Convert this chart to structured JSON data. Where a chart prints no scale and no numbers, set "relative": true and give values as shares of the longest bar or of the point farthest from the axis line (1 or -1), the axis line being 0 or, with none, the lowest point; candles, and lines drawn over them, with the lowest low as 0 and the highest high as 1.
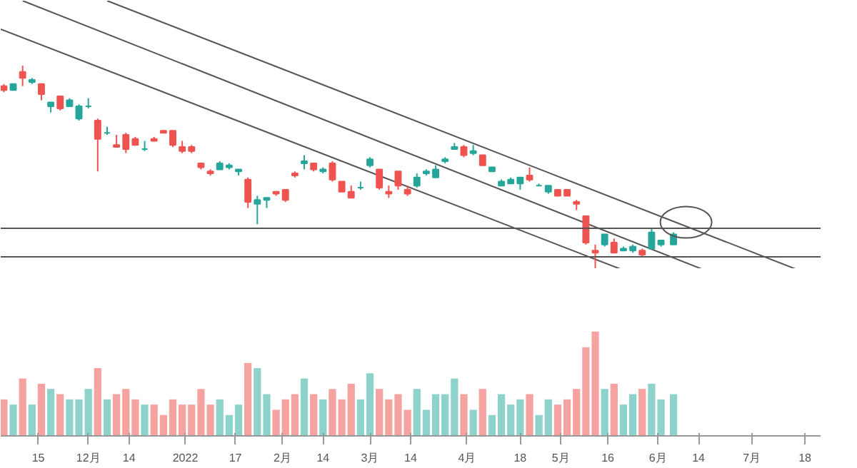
{
  "chart_data": [
    {
      "type": "candlestick",
      "relative": true,
      "tick_labels": false,
      "xlim": [
        "2021-11-03",
        "2022-07-23"
      ],
      "x": [
        "2021-11-04",
        "2021-11-07",
        "2021-11-10",
        "2021-11-13",
        "2021-11-16",
        "2021-11-19",
        "2021-11-22",
        "2021-11-25",
        "2021-11-28",
        "2021-12-01",
        "2021-12-04",
        "2021-12-07",
        "2021-12-10",
        "2021-12-13",
        "2021-12-16",
        "2021-12-19",
        "2021-12-22",
        "2021-12-25",
        "2021-12-28",
        "2021-12-31",
        "2022-01-03",
        "2022-01-06",
        "2022-01-09",
        "2022-01-12",
        "2022-01-15",
        "2022-01-18",
        "2022-01-21",
        "2022-01-24",
        "2022-01-27",
        "2022-01-30",
        "2022-02-02",
        "2022-02-05",
        "2022-02-08",
        "2022-02-11",
        "2022-02-14",
        "2022-02-17",
        "2022-02-20",
        "2022-02-23",
        "2022-02-26",
        "2022-03-01",
        "2022-03-04",
        "2022-03-07",
        "2022-03-10",
        "2022-03-13",
        "2022-03-16",
        "2022-03-19",
        "2022-03-22",
        "2022-03-25",
        "2022-03-28",
        "2022-03-31",
        "2022-04-03",
        "2022-04-06",
        "2022-04-09",
        "2022-04-12",
        "2022-04-15",
        "2022-04-18",
        "2022-04-21",
        "2022-04-24",
        "2022-04-27",
        "2022-04-30",
        "2022-05-03",
        "2022-05-06",
        "2022-05-09",
        "2022-05-12",
        "2022-05-15",
        "2022-05-18",
        "2022-05-21",
        "2022-05-24",
        "2022-05-27",
        "2022-05-30",
        "2022-06-02",
        "2022-06-06"
      ],
      "ohlc": [
        [
          0.9,
          0.91,
          0.87,
          0.88
        ],
        [
          0.88,
          0.91,
          0.88,
          0.91
        ],
        [
          0.97,
          1.0,
          0.9,
          0.94
        ],
        [
          0.92,
          0.94,
          0.91,
          0.93
        ],
        [
          0.91,
          0.91,
          0.83,
          0.86
        ],
        [
          0.8,
          0.82,
          0.77,
          0.82
        ],
        [
          0.85,
          0.85,
          0.78,
          0.79
        ],
        [
          0.8,
          0.84,
          0.8,
          0.83
        ],
        [
          0.74,
          0.81,
          0.73,
          0.8
        ],
        [
          0.8,
          0.84,
          0.79,
          0.8
        ],
        [
          0.73,
          0.74,
          0.48,
          0.64
        ],
        [
          0.67,
          0.7,
          0.66,
          0.67
        ],
        [
          0.61,
          0.66,
          0.6,
          0.6
        ],
        [
          0.66,
          0.67,
          0.57,
          0.59
        ],
        [
          0.64,
          0.65,
          0.61,
          0.61
        ],
        [
          0.59,
          0.63,
          0.58,
          0.59
        ],
        [
          0.64,
          0.65,
          0.63,
          0.63
        ],
        [
          0.68,
          0.68,
          0.67,
          0.67
        ],
        [
          0.68,
          0.68,
          0.6,
          0.61
        ],
        [
          0.6,
          0.63,
          0.57,
          0.58
        ],
        [
          0.6,
          0.61,
          0.57,
          0.58
        ],
        [
          0.52,
          0.52,
          0.49,
          0.5
        ],
        [
          0.48,
          0.49,
          0.46,
          0.47
        ],
        [
          0.49,
          0.53,
          0.49,
          0.52
        ],
        [
          0.5,
          0.52,
          0.49,
          0.51
        ],
        [
          0.48,
          0.49,
          0.46,
          0.49
        ],
        [
          0.44,
          0.45,
          0.3,
          0.33
        ],
        [
          0.32,
          0.36,
          0.22,
          0.34
        ],
        [
          0.34,
          0.35,
          0.3,
          0.35
        ],
        [
          0.38,
          0.38,
          0.36,
          0.37
        ],
        [
          0.39,
          0.39,
          0.33,
          0.34
        ],
        [
          0.47,
          0.48,
          0.45,
          0.46
        ],
        [
          0.52,
          0.56,
          0.49,
          0.53
        ],
        [
          0.52,
          0.52,
          0.48,
          0.49
        ],
        [
          0.48,
          0.5,
          0.47,
          0.49
        ],
        [
          0.52,
          0.53,
          0.43,
          0.44
        ],
        [
          0.43,
          0.43,
          0.38,
          0.38
        ],
        [
          0.38,
          0.41,
          0.35,
          0.35
        ],
        [
          0.4,
          0.43,
          0.39,
          0.4
        ],
        [
          0.51,
          0.55,
          0.5,
          0.54
        ],
        [
          0.49,
          0.49,
          0.39,
          0.4
        ],
        [
          0.38,
          0.41,
          0.35,
          0.37
        ],
        [
          0.48,
          0.48,
          0.39,
          0.41
        ],
        [
          0.39,
          0.41,
          0.36,
          0.37
        ],
        [
          0.41,
          0.47,
          0.4,
          0.45
        ],
        [
          0.47,
          0.49,
          0.46,
          0.48
        ],
        [
          0.45,
          0.51,
          0.45,
          0.49
        ],
        [
          0.53,
          0.55,
          0.52,
          0.54
        ],
        [
          0.59,
          0.62,
          0.59,
          0.6
        ],
        [
          0.6,
          0.61,
          0.55,
          0.56
        ],
        [
          0.57,
          0.61,
          0.56,
          0.58
        ],
        [
          0.56,
          0.56,
          0.51,
          0.51
        ],
        [
          0.48,
          0.5,
          0.48,
          0.5
        ],
        [
          0.41,
          0.44,
          0.41,
          0.43
        ],
        [
          0.42,
          0.45,
          0.42,
          0.44
        ],
        [
          0.42,
          0.45,
          0.39,
          0.45
        ],
        [
          0.46,
          0.5,
          0.43,
          0.44
        ],
        [
          0.41,
          0.42,
          0.41,
          0.41
        ],
        [
          0.38,
          0.41,
          0.37,
          0.41
        ],
        [
          0.39,
          0.39,
          0.36,
          0.36
        ],
        [
          0.39,
          0.39,
          0.36,
          0.36
        ],
        [
          0.33,
          0.34,
          0.29,
          0.32
        ],
        [
          0.26,
          0.26,
          0.12,
          0.13
        ],
        [
          0.09,
          0.12,
          0.0,
          0.08
        ],
        [
          0.12,
          0.17,
          0.11,
          0.17
        ],
        [
          0.13,
          0.15,
          0.08,
          0.08
        ],
        [
          0.09,
          0.11,
          0.09,
          0.1
        ],
        [
          0.09,
          0.12,
          0.08,
          0.11
        ],
        [
          0.09,
          0.1,
          0.06,
          0.07
        ],
        [
          0.1,
          0.2,
          0.1,
          0.18
        ],
        [
          0.12,
          0.14,
          0.11,
          0.14
        ],
        [
          0.12,
          0.18,
          0.12,
          0.17
        ]
      ],
      "colors": [
        "#ef5350",
        "#26a69a",
        "#ef5350",
        "#26a69a",
        "#ef5350",
        "#26a69a",
        "#ef5350",
        "#26a69a",
        "#26a69a",
        "#26a69a",
        "#ef5350",
        "#26a69a",
        "#ef5350",
        "#ef5350",
        "#ef5350",
        "#26a69a",
        "#ef5350",
        "#ef5350",
        "#ef5350",
        "#ef5350",
        "#ef5350",
        "#ef5350",
        "#ef5350",
        "#26a69a",
        "#26a69a",
        "#26a69a",
        "#ef5350",
        "#26a69a",
        "#26a69a",
        "#ef5350",
        "#ef5350",
        "#ef5350",
        "#26a69a",
        "#ef5350",
        "#26a69a",
        "#ef5350",
        "#ef5350",
        "#ef5350",
        "#26a69a",
        "#26a69a",
        "#ef5350",
        "#ef5350",
        "#ef5350",
        "#ef5350",
        "#26a69a",
        "#26a69a",
        "#26a69a",
        "#26a69a",
        "#26a69a",
        "#ef5350",
        "#26a69a",
        "#ef5350",
        "#26a69a",
        "#26a69a",
        "#26a69a",
        "#26a69a",
        "#ef5350",
        "#26a69a",
        "#26a69a",
        "#ef5350",
        "#ef5350",
        "#ef5350",
        "#ef5350",
        "#ef5350",
        "#26a69a",
        "#ef5350",
        "#26a69a",
        "#26a69a",
        "#ef5350",
        "#26a69a",
        "#26a69a",
        "#26a69a"
      ],
      "series": [
        {
          "type": "line",
          "color": "#555555",
          "x": [
            "2021-11-03",
            "2022-05-20"
          ],
          "values": [
            1.18,
            0.0
          ]
        },
        {
          "type": "line",
          "color": "#555555",
          "x": [
            "2021-11-10",
            "2022-06-15"
          ],
          "values": [
            1.32,
            0.0
          ]
        },
        {
          "type": "line",
          "color": "#555555",
          "x": [
            "2021-12-07",
            "2022-07-15"
          ],
          "values": [
            1.32,
            0.0
          ]
        }
      ],
      "ref_lines": [
        {
          "axis": "y",
          "value": 0.2,
          "color": "#555555"
        },
        {
          "axis": "y",
          "value": 0.06,
          "color": "#555555"
        }
      ]
    },
    {
      "type": "bar",
      "relative": true,
      "tick_labels": "x",
      "xlim": [
        "2021-11-03",
        "2022-07-23"
      ],
      "xticks": [
        {
          "value": "2021-11-15",
          "label": "15"
        },
        {
          "value": "2021-12-01",
          "label": "12月"
        },
        {
          "value": "2021-12-14",
          "label": "14"
        },
        {
          "value": "2022-01-01",
          "label": "2022"
        },
        {
          "value": "2022-01-17",
          "label": "17"
        },
        {
          "value": "2022-02-01",
          "label": "2月"
        },
        {
          "value": "2022-02-14",
          "label": "14"
        },
        {
          "value": "2022-03-01",
          "label": "3月"
        },
        {
          "value": "2022-03-14",
          "label": "14"
        },
        {
          "value": "2022-04-01",
          "label": "4月"
        },
        {
          "value": "2022-04-18",
          "label": "18"
        },
        {
          "value": "2022-05-01",
          "label": "5月"
        },
        {
          "value": "2022-05-16",
          "label": "16"
        },
        {
          "value": "2022-06-01",
          "label": "6月"
        },
        {
          "value": "2022-06-14",
          "label": "14"
        },
        {
          "value": "2022-07-01",
          "label": "7月"
        },
        {
          "value": "2022-07-18",
          "label": "18"
        }
      ],
      "x": [
        "2021-11-04",
        "2021-11-07",
        "2021-11-10",
        "2021-11-13",
        "2021-11-16",
        "2021-11-19",
        "2021-11-22",
        "2021-11-25",
        "2021-11-28",
        "2021-12-01",
        "2021-12-04",
        "2021-12-07",
        "2021-12-10",
        "2021-12-13",
        "2021-12-16",
        "2021-12-19",
        "2021-12-22",
        "2021-12-25",
        "2021-12-28",
        "2021-12-31",
        "2022-01-03",
        "2022-01-06",
        "2022-01-09",
        "2022-01-12",
        "2022-01-15",
        "2022-01-18",
        "2022-01-21",
        "2022-01-24",
        "2022-01-27",
        "2022-01-30",
        "2022-02-02",
        "2022-02-05",
        "2022-02-08",
        "2022-02-11",
        "2022-02-14",
        "2022-02-17",
        "2022-02-20",
        "2022-02-23",
        "2022-02-26",
        "2022-03-01",
        "2022-03-04",
        "2022-03-07",
        "2022-03-10",
        "2022-03-13",
        "2022-03-16",
        "2022-03-19",
        "2022-03-22",
        "2022-03-25",
        "2022-03-28",
        "2022-03-31",
        "2022-04-03",
        "2022-04-06",
        "2022-04-09",
        "2022-04-12",
        "2022-04-15",
        "2022-04-18",
        "2022-04-21",
        "2022-04-24",
        "2022-04-27",
        "2022-04-30",
        "2022-05-03",
        "2022-05-06",
        "2022-05-09",
        "2022-05-12",
        "2022-05-15",
        "2022-05-18",
        "2022-05-21",
        "2022-05-24",
        "2022-05-27",
        "2022-05-30",
        "2022-06-02",
        "2022-06-06"
      ],
      "values": [
        0.35,
        0.3,
        0.55,
        0.3,
        0.5,
        0.45,
        0.4,
        0.35,
        0.35,
        0.45,
        0.65,
        0.35,
        0.4,
        0.45,
        0.35,
        0.3,
        0.3,
        0.2,
        0.35,
        0.3,
        0.3,
        0.45,
        0.3,
        0.35,
        0.2,
        0.3,
        0.7,
        0.65,
        0.4,
        0.25,
        0.35,
        0.4,
        0.55,
        0.4,
        0.35,
        0.45,
        0.35,
        0.5,
        0.35,
        0.6,
        0.45,
        0.35,
        0.4,
        0.25,
        0.45,
        0.25,
        0.4,
        0.4,
        0.55,
        0.4,
        0.25,
        0.45,
        0.2,
        0.4,
        0.3,
        0.35,
        0.4,
        0.2,
        0.35,
        0.3,
        0.35,
        0.45,
        0.85,
        1.0,
        0.45,
        0.5,
        0.3,
        0.4,
        0.45,
        0.5,
        0.35,
        0.4
      ],
      "colors": [
        "#f5a3a1",
        "#8dd3cb",
        "#f5a3a1",
        "#8dd3cb",
        "#f5a3a1",
        "#8dd3cb",
        "#f5a3a1",
        "#8dd3cb",
        "#8dd3cb",
        "#8dd3cb",
        "#f5a3a1",
        "#8dd3cb",
        "#f5a3a1",
        "#f5a3a1",
        "#f5a3a1",
        "#8dd3cb",
        "#f5a3a1",
        "#f5a3a1",
        "#f5a3a1",
        "#f5a3a1",
        "#f5a3a1",
        "#f5a3a1",
        "#f5a3a1",
        "#8dd3cb",
        "#8dd3cb",
        "#8dd3cb",
        "#f5a3a1",
        "#8dd3cb",
        "#8dd3cb",
        "#f5a3a1",
        "#f5a3a1",
        "#f5a3a1",
        "#8dd3cb",
        "#f5a3a1",
        "#8dd3cb",
        "#f5a3a1",
        "#f5a3a1",
        "#f5a3a1",
        "#8dd3cb",
        "#8dd3cb",
        "#f5a3a1",
        "#f5a3a1",
        "#f5a3a1",
        "#f5a3a1",
        "#8dd3cb",
        "#8dd3cb",
        "#8dd3cb",
        "#8dd3cb",
        "#8dd3cb",
        "#f5a3a1",
        "#8dd3cb",
        "#f5a3a1",
        "#8dd3cb",
        "#8dd3cb",
        "#8dd3cb",
        "#8dd3cb",
        "#f5a3a1",
        "#8dd3cb",
        "#8dd3cb",
        "#f5a3a1",
        "#f5a3a1",
        "#f5a3a1",
        "#f5a3a1",
        "#f5a3a1",
        "#8dd3cb",
        "#f5a3a1",
        "#8dd3cb",
        "#8dd3cb",
        "#f5a3a1",
        "#8dd3cb",
        "#8dd3cb",
        "#8dd3cb"
      ]
    }
  ]
}
